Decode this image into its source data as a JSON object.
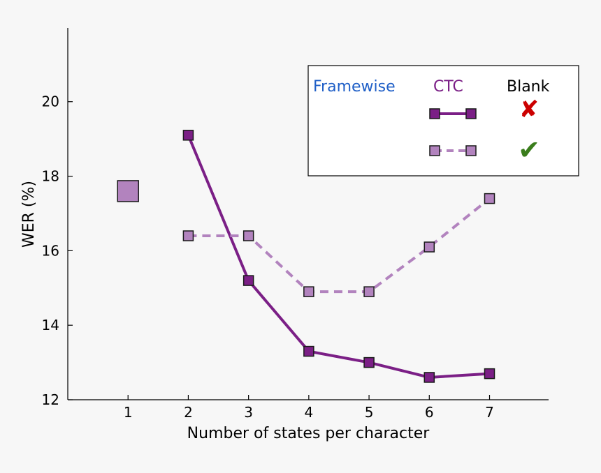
{
  "chart_data": {
    "type": "line",
    "xlabel": "Number of states per character",
    "ylabel": "WER (%)",
    "xlim": [
      0,
      7.98
    ],
    "ylim": [
      12,
      21.98
    ],
    "xticks": [
      1,
      2,
      3,
      4,
      5,
      6,
      7
    ],
    "yticks": [
      12,
      14,
      16,
      18,
      20
    ],
    "series": [
      {
        "key": "with_blank",
        "style": "solid",
        "color": "#7b1f86",
        "x": [
          2,
          3,
          4,
          5,
          6,
          7
        ],
        "values": [
          19.1,
          15.2,
          13.3,
          13.0,
          12.6,
          12.7
        ]
      },
      {
        "key": "without_blank",
        "style": "dashed",
        "color": "#b283be",
        "x": [
          2,
          3,
          4,
          5,
          6,
          7
        ],
        "values": [
          16.4,
          16.4,
          14.9,
          14.9,
          16.1,
          17.4
        ]
      }
    ],
    "framewise_point": {
      "x": 1,
      "value": 17.6,
      "color": "#b283be"
    },
    "legend": {
      "position": "top-right",
      "framewise_label": "Framewise",
      "framewise_color": "#1f5fc7",
      "ctc_label": "CTC",
      "ctc_color": "#7b1f86",
      "blank_label": "Blank",
      "blank_color": "#000000",
      "no_blank_mark": "✘",
      "no_blank_color": "#cc0000",
      "blank_mark": "✔",
      "blank_mark_color": "#3a7d1c"
    },
    "grid": false
  }
}
